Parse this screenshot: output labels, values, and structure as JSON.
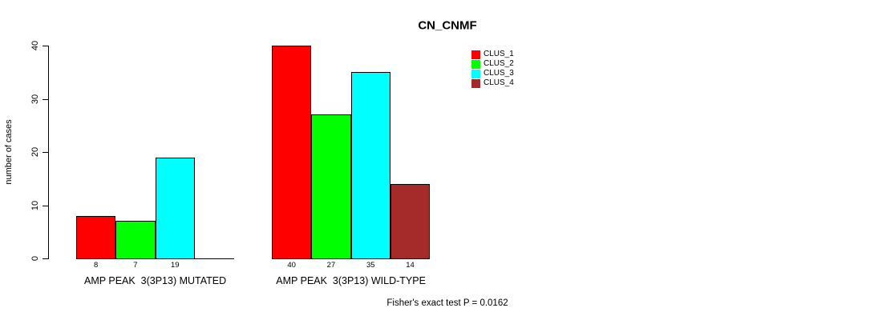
{
  "chart_data": {
    "type": "bar",
    "title": "CN_CNMF",
    "ylabel": "number of cases",
    "ylim": [
      0,
      40
    ],
    "yticks": [
      0,
      10,
      20,
      30,
      40
    ],
    "grid": false,
    "legend_position": "top-right",
    "categories": [
      "AMP PEAK  3(3P13) MUTATED",
      "AMP PEAK  3(3P13) WILD-TYPE"
    ],
    "series": [
      {
        "name": "CLUS_1",
        "color": "#FF0000",
        "values": [
          8,
          40
        ]
      },
      {
        "name": "CLUS_2",
        "color": "#00FF00",
        "values": [
          7,
          27
        ]
      },
      {
        "name": "CLUS_3",
        "color": "#00FFFF",
        "values": [
          19,
          35
        ]
      },
      {
        "name": "CLUS_4",
        "color": "#A52A2A",
        "values": [
          0,
          14
        ]
      }
    ],
    "bar_value_labels": [
      [
        "8",
        "7",
        "19",
        ""
      ],
      [
        "40",
        "27",
        "35",
        "14"
      ]
    ],
    "annotation": "Fisher's exact test P = 0.0162"
  },
  "colors": {
    "background": "#FFFFFF",
    "axis": "#000000",
    "text": "#000000"
  }
}
